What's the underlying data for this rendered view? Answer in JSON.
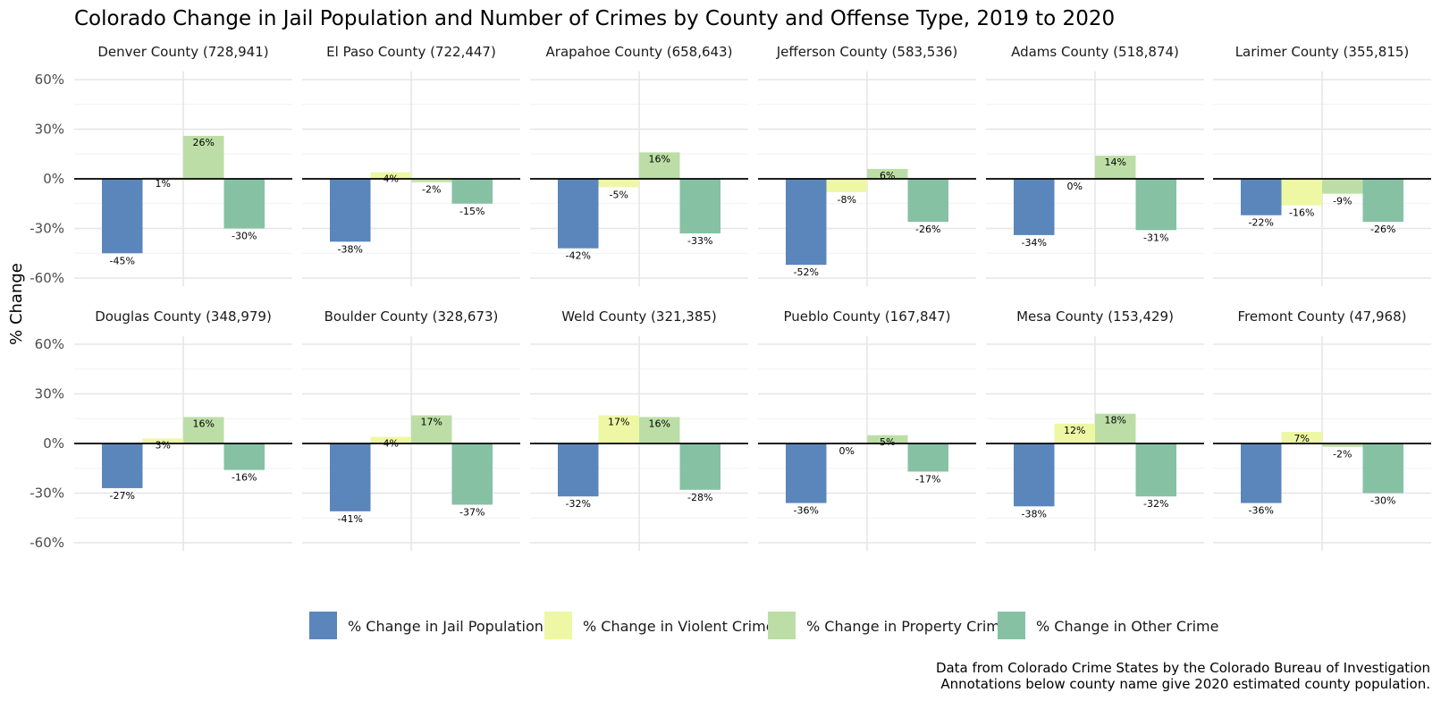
{
  "chart_data": {
    "type": "bar",
    "title": "Colorado Change in Jail Population and Number of Crimes by County and Offense Type, 2019 to 2020",
    "ylabel": "% Change",
    "xlabel": "",
    "ylim": [
      -65,
      65
    ],
    "yticks": [
      60,
      30,
      0,
      -30,
      -60
    ],
    "ytick_labels": [
      "60%",
      "30%",
      "0%",
      "-30%",
      "-60%"
    ],
    "grid": true,
    "legend_position": "bottom",
    "series": [
      {
        "name": "% Change in Jail Population",
        "color": "#5a86bb"
      },
      {
        "name": "% Change in Violent Crime",
        "color": "#eef7a3"
      },
      {
        "name": "% Change in Property Crime",
        "color": "#bcdea6"
      },
      {
        "name": "% Change in Other Crime",
        "color": "#86c1a4"
      }
    ],
    "panels": [
      {
        "label": "Denver County (728,941)",
        "values": [
          -45,
          1,
          26,
          -30
        ],
        "labels": [
          "-45%",
          "1%",
          "26%",
          "-30%"
        ]
      },
      {
        "label": "El Paso County (722,447)",
        "values": [
          -38,
          4,
          -2,
          -15
        ],
        "labels": [
          "-38%",
          "4%",
          "-2%",
          "-15%"
        ]
      },
      {
        "label": "Arapahoe County (658,643)",
        "values": [
          -42,
          -5,
          16,
          -33
        ],
        "labels": [
          "-42%",
          "-5%",
          "16%",
          "-33%"
        ]
      },
      {
        "label": "Jefferson County (583,536)",
        "values": [
          -52,
          -8,
          6,
          -26
        ],
        "labels": [
          "-52%",
          "-8%",
          "6%",
          "-26%"
        ]
      },
      {
        "label": "Adams County (518,874)",
        "values": [
          -34,
          0,
          14,
          -31
        ],
        "labels": [
          "-34%",
          "0%",
          "14%",
          "-31%"
        ]
      },
      {
        "label": "Larimer County (355,815)",
        "values": [
          -22,
          -16,
          -9,
          -26
        ],
        "labels": [
          "-22%",
          "-16%",
          "-9%",
          "-26%"
        ]
      },
      {
        "label": "Douglas County (348,979)",
        "values": [
          -27,
          3,
          16,
          -16
        ],
        "labels": [
          "-27%",
          "3%",
          "16%",
          "-16%"
        ]
      },
      {
        "label": "Boulder County (328,673)",
        "values": [
          -41,
          4,
          17,
          -37
        ],
        "labels": [
          "-41%",
          "4%",
          "17%",
          "-37%"
        ]
      },
      {
        "label": "Weld County (321,385)",
        "values": [
          -32,
          17,
          16,
          -28
        ],
        "labels": [
          "-32%",
          "17%",
          "16%",
          "-28%"
        ]
      },
      {
        "label": "Pueblo County (167,847)",
        "values": [
          -36,
          0,
          5,
          -17
        ],
        "labels": [
          "-36%",
          "0%",
          "5%",
          "-17%"
        ]
      },
      {
        "label": "Mesa County (153,429)",
        "values": [
          -38,
          12,
          18,
          -32
        ],
        "labels": [
          "-38%",
          "12%",
          "18%",
          "-32%"
        ]
      },
      {
        "label": "Fremont County (47,968)",
        "values": [
          -36,
          7,
          -2,
          -30
        ],
        "labels": [
          "-36%",
          "7%",
          "-2%",
          "-30%"
        ]
      }
    ],
    "caption": [
      "Data from Colorado Crime States by the Colorado Bureau of Investigation",
      "Annotations below county name give 2020 estimated county population."
    ]
  }
}
